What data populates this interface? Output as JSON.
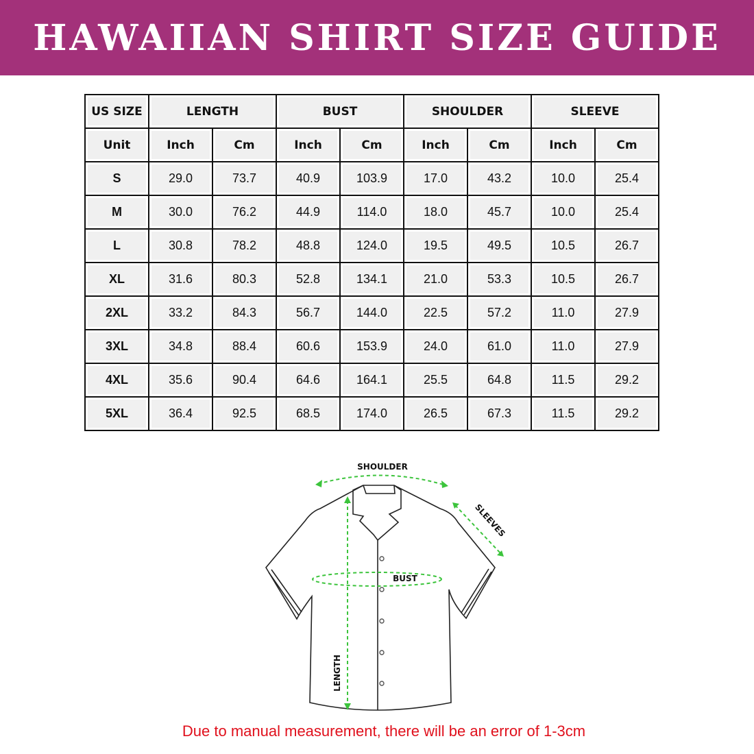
{
  "title": "HAWAIIAN SHIRT SIZE GUIDE",
  "table": {
    "group_headers": [
      "US SIZE",
      "LENGTH",
      "BUST",
      "SHOULDER",
      "SLEEVE"
    ],
    "unit_row": [
      "Unit",
      "Inch",
      "Cm",
      "Inch",
      "Cm",
      "Inch",
      "Cm",
      "Inch",
      "Cm"
    ],
    "rows": [
      [
        "S",
        "29.0",
        "73.7",
        "40.9",
        "103.9",
        "17.0",
        "43.2",
        "10.0",
        "25.4"
      ],
      [
        "M",
        "30.0",
        "76.2",
        "44.9",
        "114.0",
        "18.0",
        "45.7",
        "10.0",
        "25.4"
      ],
      [
        "L",
        "30.8",
        "78.2",
        "48.8",
        "124.0",
        "19.5",
        "49.5",
        "10.5",
        "26.7"
      ],
      [
        "XL",
        "31.6",
        "80.3",
        "52.8",
        "134.1",
        "21.0",
        "53.3",
        "10.5",
        "26.7"
      ],
      [
        "2XL",
        "33.2",
        "84.3",
        "56.7",
        "144.0",
        "22.5",
        "57.2",
        "11.0",
        "27.9"
      ],
      [
        "3XL",
        "34.8",
        "88.4",
        "60.6",
        "153.9",
        "24.0",
        "61.0",
        "11.0",
        "27.9"
      ],
      [
        "4XL",
        "35.6",
        "90.4",
        "64.6",
        "164.1",
        "25.5",
        "64.8",
        "11.5",
        "29.2"
      ],
      [
        "5XL",
        "36.4",
        "92.5",
        "68.5",
        "174.0",
        "26.5",
        "67.3",
        "11.5",
        "29.2"
      ]
    ]
  },
  "diagram": {
    "shoulder": "SHOULDER",
    "sleeves": "SLEEVES",
    "bust": "BUST",
    "length": "LENGTH"
  },
  "note": "Due to manual measurement, there will be an error of 1-3cm",
  "colors": {
    "banner": "#a3317a",
    "measure": "#3cc43c",
    "note": "#e0101c"
  }
}
